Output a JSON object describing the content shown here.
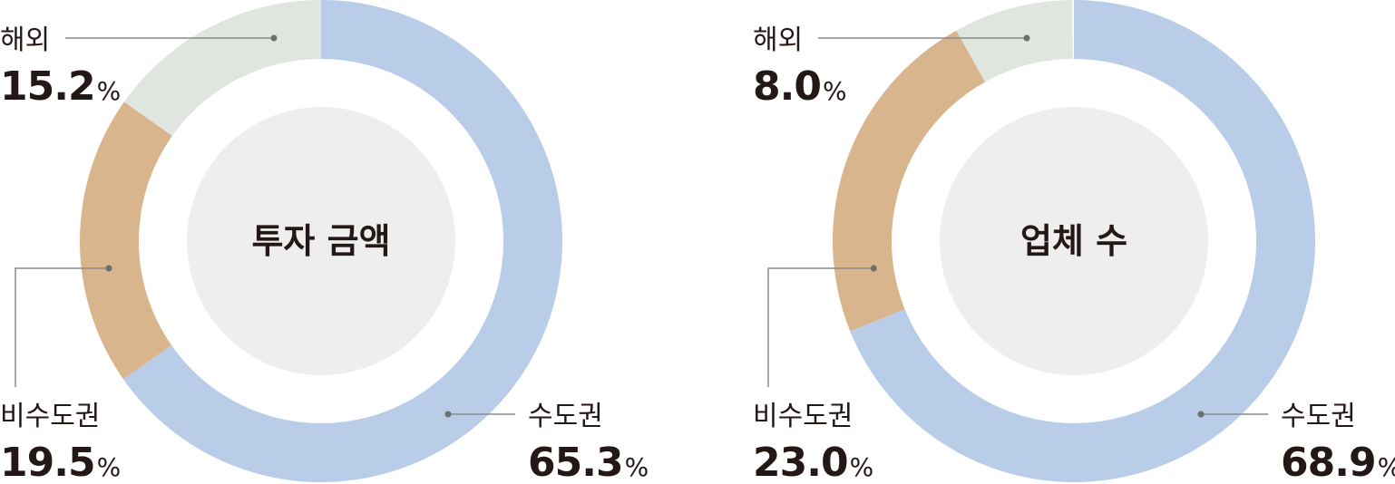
{
  "chart_data": [
    {
      "type": "pie",
      "title": "투자 금액",
      "unit": "%",
      "slices": [
        {
          "label": "수도권",
          "value": 65.3,
          "color": "#b9cde9"
        },
        {
          "label": "비수도권",
          "value": 19.5,
          "color": "#d8b58c"
        },
        {
          "label": "해외",
          "value": 15.2,
          "color": "#e0e5e0"
        }
      ]
    },
    {
      "type": "pie",
      "title": "업체 수",
      "unit": "%",
      "slices": [
        {
          "label": "수도권",
          "value": 68.9,
          "color": "#b9cde9"
        },
        {
          "label": "비수도권",
          "value": 23.0,
          "color": "#d8b58c"
        },
        {
          "label": "해외",
          "value": 8.0,
          "color": "#e0e5e0"
        }
      ]
    }
  ],
  "style": {
    "inner_circle_color": "#edeeed",
    "text_color": "#231815",
    "leader_color": "#8a8a8a"
  }
}
